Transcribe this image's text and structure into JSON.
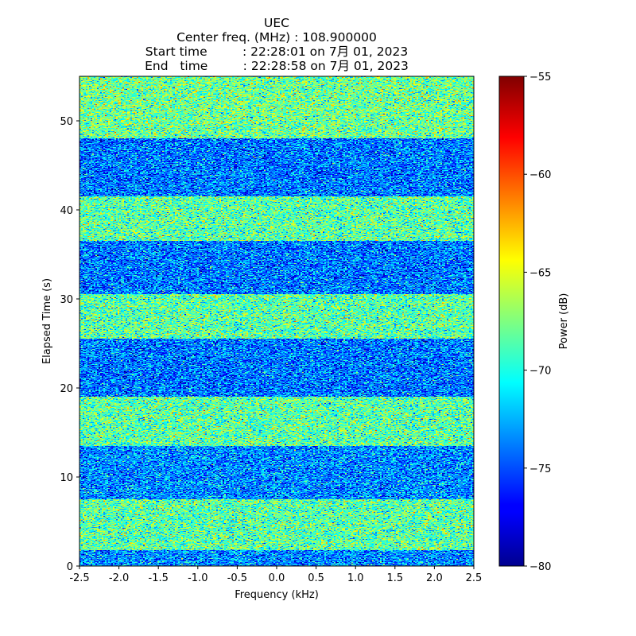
{
  "title": {
    "station": "UEC",
    "center_freq": "Center freq. (MHz) : 108.900000",
    "start_time": "Start time         : 22:28:01 on 7月 01, 2023",
    "end_time": "End   time         : 22:28:58 on 7月 01, 2023"
  },
  "chart_data": {
    "type": "heatmap",
    "xlabel": "Frequency (kHz)",
    "ylabel": "Elapsed Time (s)",
    "xlim": [
      -2.5,
      2.5
    ],
    "ylim": [
      0,
      55
    ],
    "x_ticks": [
      -2.5,
      -2.0,
      -1.5,
      -1.0,
      -0.5,
      0.0,
      0.5,
      1.0,
      1.5,
      2.0,
      2.5
    ],
    "x_tick_labels": [
      "-2.5",
      "-2.0",
      "-1.5",
      "-1.0",
      "-0.5",
      "0.0",
      "0.5",
      "1.0",
      "1.5",
      "2.0",
      "2.5"
    ],
    "y_ticks": [
      0,
      10,
      20,
      30,
      40,
      50
    ],
    "y_tick_labels": [
      "0",
      "10",
      "20",
      "30",
      "40",
      "50"
    ],
    "colorbar": {
      "label": "Power (dB)",
      "range": [
        -80,
        -55
      ],
      "ticks": [
        -80,
        -75,
        -70,
        -65,
        -60,
        -55
      ],
      "tick_labels": [
        "−80",
        "−75",
        "−70",
        "−65",
        "−60",
        "−55"
      ],
      "colormap": "jet"
    },
    "time_bands": [
      {
        "t_start": 0.0,
        "t_end": 1.8,
        "mean_dB": -73.5
      },
      {
        "t_start": 1.8,
        "t_end": 7.5,
        "mean_dB": -68.5
      },
      {
        "t_start": 7.5,
        "t_end": 13.5,
        "mean_dB": -73.5
      },
      {
        "t_start": 13.5,
        "t_end": 19.0,
        "mean_dB": -68.5
      },
      {
        "t_start": 19.0,
        "t_end": 25.5,
        "mean_dB": -74.0
      },
      {
        "t_start": 25.5,
        "t_end": 30.5,
        "mean_dB": -68.5
      },
      {
        "t_start": 30.5,
        "t_end": 36.5,
        "mean_dB": -74.0
      },
      {
        "t_start": 36.5,
        "t_end": 41.5,
        "mean_dB": -68.5
      },
      {
        "t_start": 41.5,
        "t_end": 48.0,
        "mean_dB": -74.0
      },
      {
        "t_start": 48.0,
        "t_end": 55.0,
        "mean_dB": -68.0
      }
    ],
    "noise_std_dB": 2.6
  }
}
